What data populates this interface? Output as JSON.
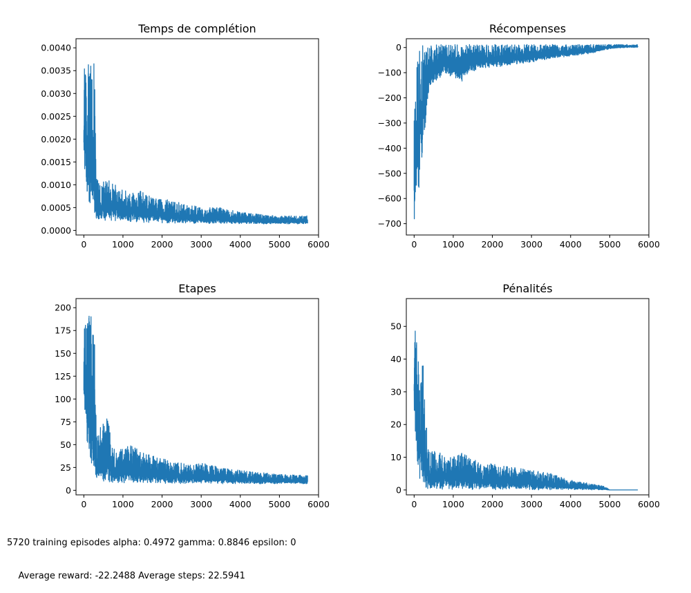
{
  "caption": {
    "line1": "5720 training episodes alpha: 0.4972 gamma: 0.8846 epsilon: 0",
    "line2": "    Average reward: -22.2488 Average steps: 22.5941"
  },
  "chart_data": [
    {
      "type": "line",
      "title": "Temps de complétion",
      "xlabel": "",
      "ylabel": "",
      "xlim": [
        -200,
        6000
      ],
      "ylim": [
        -0.0001,
        0.0042
      ],
      "xticks": [
        0,
        1000,
        2000,
        3000,
        4000,
        5000,
        6000
      ],
      "xticklabels": [
        "0",
        "1000",
        "2000",
        "3000",
        "4000",
        "5000",
        "6000"
      ],
      "yticks": [
        0,
        0.0005,
        0.001,
        0.0015,
        0.002,
        0.0025,
        0.003,
        0.0035,
        0.004
      ],
      "yticklabels": [
        "0.0000",
        "0.0005",
        "0.0010",
        "0.0015",
        "0.0020",
        "0.0025",
        "0.0030",
        "0.0035",
        "0.0040"
      ],
      "color": "#1f77b4",
      "grid": false,
      "series": [
        {
          "x": [
            0,
            40,
            80,
            120,
            160,
            200,
            240,
            280,
            320,
            400,
            600,
            800,
            1000,
            1200,
            1400,
            1600,
            1800,
            2000,
            2500,
            3000,
            3500,
            4000,
            4500,
            5000,
            5500,
            5720
          ],
          "y_upper": [
            0.0036,
            0.0036,
            0.0035,
            0.004,
            0.004,
            0.0035,
            0.004,
            0.0032,
            0.0012,
            0.001,
            0.0012,
            0.001,
            0.0009,
            0.0008,
            0.0009,
            0.0008,
            0.0007,
            0.0007,
            0.0006,
            0.0005,
            0.0005,
            0.0004,
            0.00035,
            0.00032,
            0.00032,
            0.00032
          ],
          "y_lower": [
            0.0013,
            0.0013,
            0.0007,
            0.0006,
            0.0004,
            0.0003,
            0.0003,
            0.0002,
            0.00025,
            0.0002,
            0.0002,
            0.0002,
            0.0002,
            0.00018,
            0.00018,
            0.00017,
            0.00016,
            0.00016,
            0.00015,
            0.00015,
            0.00014,
            0.00014,
            0.00014,
            0.00014,
            0.00014,
            0.00015
          ]
        }
      ]
    },
    {
      "type": "line",
      "title": "Récompenses",
      "xlabel": "",
      "ylabel": "",
      "xlim": [
        -200,
        6000
      ],
      "ylim": [
        -745,
        35
      ],
      "xticks": [
        0,
        1000,
        2000,
        3000,
        4000,
        5000,
        6000
      ],
      "xticklabels": [
        "0",
        "1000",
        "2000",
        "3000",
        "4000",
        "5000",
        "6000"
      ],
      "yticks": [
        0,
        -100,
        -200,
        -300,
        -400,
        -500,
        -600,
        -700
      ],
      "yticklabels": [
        "0",
        "−100",
        "−200",
        "−300",
        "−400",
        "−500",
        "−600",
        "−700"
      ],
      "color": "#1f77b4",
      "grid": false,
      "series": [
        {
          "x": [
            0,
            40,
            80,
            120,
            160,
            200,
            240,
            280,
            320,
            400,
            600,
            800,
            1000,
            1200,
            1400,
            1600,
            1800,
            2000,
            2500,
            3000,
            3500,
            4000,
            4500,
            5000,
            5500,
            5720
          ],
          "y_upper": [
            -220,
            -150,
            -60,
            5,
            10,
            10,
            10,
            10,
            10,
            10,
            12,
            12,
            12,
            12,
            12,
            12,
            12,
            12,
            12,
            12,
            12,
            12,
            12,
            12,
            12,
            12
          ],
          "y_lower": [
            -710,
            -650,
            -500,
            -600,
            -400,
            -550,
            -350,
            -380,
            -250,
            -150,
            -130,
            -110,
            -120,
            -140,
            -100,
            -90,
            -80,
            -80,
            -70,
            -60,
            -45,
            -35,
            -25,
            -5,
            0,
            0
          ]
        }
      ]
    },
    {
      "type": "line",
      "title": "Etapes",
      "xlabel": "",
      "ylabel": "",
      "xlim": [
        -200,
        6000
      ],
      "ylim": [
        -5,
        210
      ],
      "xticks": [
        0,
        1000,
        2000,
        3000,
        4000,
        5000,
        6000
      ],
      "xticklabels": [
        "0",
        "1000",
        "2000",
        "3000",
        "4000",
        "5000",
        "6000"
      ],
      "yticks": [
        0,
        25,
        50,
        75,
        100,
        125,
        150,
        175,
        200
      ],
      "yticklabels": [
        "0",
        "25",
        "50",
        "75",
        "100",
        "125",
        "150",
        "175",
        "200"
      ],
      "color": "#1f77b4",
      "grid": false,
      "series": [
        {
          "x": [
            0,
            40,
            80,
            120,
            160,
            200,
            240,
            280,
            320,
            400,
            600,
            800,
            1000,
            1200,
            1400,
            1600,
            1800,
            2000,
            2500,
            3000,
            3500,
            4000,
            4500,
            5000,
            5500,
            5720
          ],
          "y_upper": [
            200,
            200,
            200,
            200,
            200,
            200,
            200,
            160,
            60,
            70,
            80,
            45,
            45,
            50,
            45,
            40,
            38,
            35,
            30,
            30,
            25,
            22,
            20,
            18,
            17,
            16
          ],
          "y_lower": [
            70,
            70,
            40,
            40,
            30,
            20,
            12,
            10,
            10,
            8,
            8,
            7,
            7,
            7,
            7,
            7,
            7,
            7,
            7,
            7,
            7,
            7,
            7,
            7,
            7,
            7
          ]
        }
      ]
    },
    {
      "type": "line",
      "title": "Pénalités",
      "xlabel": "",
      "ylabel": "",
      "xlim": [
        -200,
        6000
      ],
      "ylim": [
        -1.5,
        58.5
      ],
      "xticks": [
        0,
        1000,
        2000,
        3000,
        4000,
        5000,
        6000
      ],
      "xticklabels": [
        "0",
        "1000",
        "2000",
        "3000",
        "4000",
        "5000",
        "6000"
      ],
      "yticks": [
        0,
        10,
        20,
        30,
        40,
        50
      ],
      "yticklabels": [
        "0",
        "10",
        "20",
        "30",
        "40",
        "50"
      ],
      "color": "#1f77b4",
      "grid": false,
      "series": [
        {
          "x": [
            0,
            40,
            80,
            120,
            160,
            200,
            240,
            280,
            320,
            400,
            600,
            800,
            1000,
            1200,
            1400,
            1600,
            1800,
            2000,
            2500,
            3000,
            3500,
            4000,
            4500,
            4900,
            5000,
            5500,
            5720
          ],
          "y_upper": [
            57,
            50,
            45,
            40,
            35,
            44,
            38,
            30,
            20,
            12,
            12,
            10,
            10,
            12,
            10,
            9,
            8,
            8,
            7,
            6,
            5,
            3,
            2,
            1,
            0,
            0,
            0
          ],
          "y_lower": [
            18,
            15,
            5,
            3,
            2,
            0,
            0,
            0,
            0,
            0,
            0,
            0,
            0,
            0,
            0,
            0,
            0,
            0,
            0,
            0,
            0,
            0,
            0,
            0,
            0,
            0,
            0
          ]
        }
      ]
    }
  ]
}
